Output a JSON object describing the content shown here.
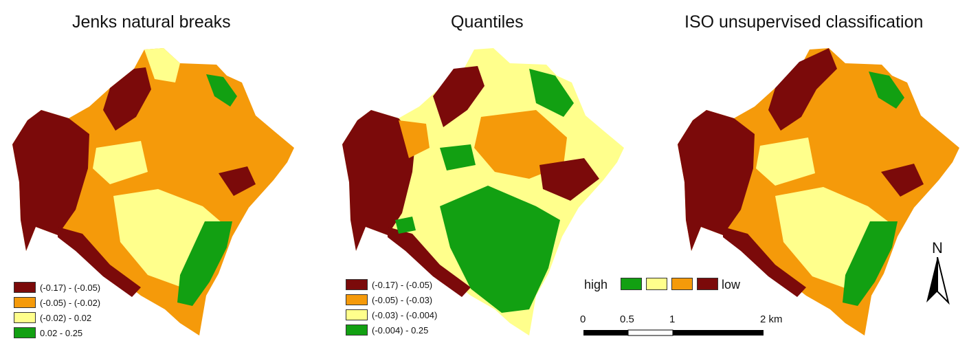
{
  "panels": [
    {
      "title": "Jenks natural breaks",
      "legend": [
        {
          "label": "(-0.17) - (-0.05)",
          "color": "#7b0a0a"
        },
        {
          "label": "(-0.05) - (-0.02)",
          "color": "#f59a0a"
        },
        {
          "label": "(-0.02) - 0.02",
          "color": "#ffff8c"
        },
        {
          "label": "0.02  - 0.25",
          "color": "#12a012"
        }
      ]
    },
    {
      "title": "Quantiles",
      "legend": [
        {
          "label": "(-0.17) - (-0.05)",
          "color": "#7b0a0a"
        },
        {
          "label": "(-0.05) - (-0.03)",
          "color": "#f59a0a"
        },
        {
          "label": "(-0.03) - (-0.004)",
          "color": "#ffff8c"
        },
        {
          "label": "(-0.004) - 0.25",
          "color": "#12a012"
        }
      ]
    },
    {
      "title": "ISO unsupervised classification"
    }
  ],
  "ramp": {
    "high_label": "high",
    "low_label": "low",
    "colors": [
      "#12a012",
      "#ffff8c",
      "#f59a0a",
      "#7b0a0a"
    ]
  },
  "scale_bar": {
    "ticks": [
      "0",
      "0.5",
      "1",
      "2 km"
    ]
  },
  "north_arrow": {
    "label": "N",
    "icon": "north-arrow-icon"
  }
}
